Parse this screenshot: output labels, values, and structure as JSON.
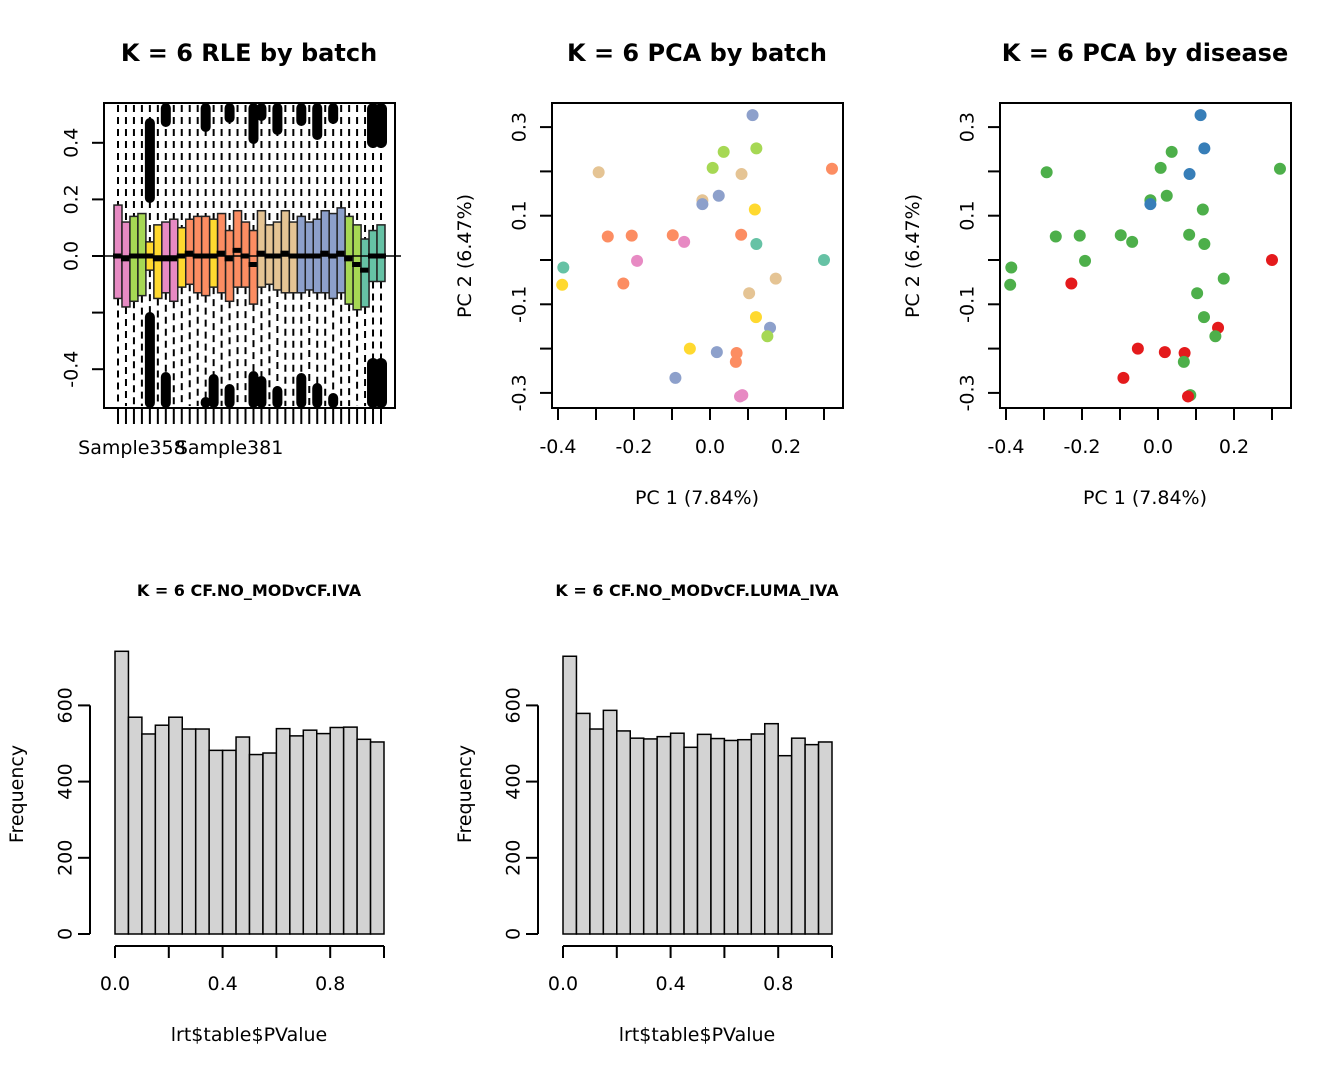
{
  "figure": {
    "panels_layout": "2 rows x 3 columns, bottom-right empty"
  },
  "chart_data": [
    {
      "id": "rle",
      "type": "boxplot",
      "title": "K = 6 RLE by batch",
      "xlabel": "",
      "ylabel": "",
      "ylim": [
        -0.54,
        0.54
      ],
      "yticks": [
        0.4,
        0.2,
        0.0,
        -0.2,
        -0.4
      ],
      "ytick_labels": [
        "0.4",
        "0.2",
        "0.0",
        "",
        "-0.4"
      ],
      "xtick_labels": [
        {
          "index": 2,
          "label": "Sample358"
        },
        {
          "index": 14,
          "label": "Sample381"
        }
      ],
      "reference_line": 0.0,
      "batch_colors": {
        "pink": "#E78AC3",
        "green": "#A6D854",
        "yellow": "#FFD92F",
        "orange": "#FC8D62",
        "tan": "#E5C494",
        "blue": "#8DA0CB",
        "teal": "#66C2A5"
      },
      "boxes": [
        {
          "batch": "pink",
          "q3": 0.18,
          "median": 0.0,
          "q1": -0.15
        },
        {
          "batch": "pink",
          "q3": 0.12,
          "median": -0.01,
          "q1": -0.18
        },
        {
          "batch": "green",
          "q3": 0.14,
          "median": 0.0,
          "q1": -0.16
        },
        {
          "batch": "green",
          "q3": 0.15,
          "median": 0.0,
          "q1": -0.14
        },
        {
          "batch": "yellow",
          "q3": 0.05,
          "median": 0.0,
          "q1": -0.05
        },
        {
          "batch": "yellow",
          "q3": 0.11,
          "median": -0.01,
          "q1": -0.15
        },
        {
          "batch": "pink",
          "q3": 0.12,
          "median": -0.01,
          "q1": -0.13
        },
        {
          "batch": "pink",
          "q3": 0.13,
          "median": -0.01,
          "q1": -0.16
        },
        {
          "batch": "yellow",
          "q3": 0.1,
          "median": 0.0,
          "q1": -0.11
        },
        {
          "batch": "orange",
          "q3": 0.13,
          "median": 0.01,
          "q1": -0.1
        },
        {
          "batch": "orange",
          "q3": 0.14,
          "median": 0.0,
          "q1": -0.13
        },
        {
          "batch": "orange",
          "q3": 0.14,
          "median": 0.0,
          "q1": -0.14
        },
        {
          "batch": "yellow",
          "q3": 0.13,
          "median": 0.0,
          "q1": -0.11
        },
        {
          "batch": "orange",
          "q3": 0.15,
          "median": 0.01,
          "q1": -0.13
        },
        {
          "batch": "orange",
          "q3": 0.09,
          "median": -0.01,
          "q1": -0.16
        },
        {
          "batch": "orange",
          "q3": 0.16,
          "median": 0.02,
          "q1": -0.11
        },
        {
          "batch": "orange",
          "q3": 0.12,
          "median": 0.0,
          "q1": -0.11
        },
        {
          "batch": "orange",
          "q3": 0.09,
          "median": -0.03,
          "q1": -0.17
        },
        {
          "batch": "tan",
          "q3": 0.16,
          "median": 0.01,
          "q1": -0.11
        },
        {
          "batch": "tan",
          "q3": 0.11,
          "median": 0.0,
          "q1": -0.1
        },
        {
          "batch": "tan",
          "q3": 0.12,
          "median": 0.0,
          "q1": -0.12
        },
        {
          "batch": "tan",
          "q3": 0.16,
          "median": 0.01,
          "q1": -0.13
        },
        {
          "batch": "tan",
          "q3": 0.12,
          "median": 0.0,
          "q1": -0.13
        },
        {
          "batch": "blue",
          "q3": 0.14,
          "median": 0.0,
          "q1": -0.13
        },
        {
          "batch": "blue",
          "q3": 0.12,
          "median": 0.0,
          "q1": -0.12
        },
        {
          "batch": "blue",
          "q3": 0.13,
          "median": 0.0,
          "q1": -0.13
        },
        {
          "batch": "blue",
          "q3": 0.16,
          "median": 0.01,
          "q1": -0.13
        },
        {
          "batch": "blue",
          "q3": 0.15,
          "median": 0.0,
          "q1": -0.15
        },
        {
          "batch": "blue",
          "q3": 0.17,
          "median": 0.01,
          "q1": -0.13
        },
        {
          "batch": "green",
          "q3": 0.14,
          "median": -0.01,
          "q1": -0.17
        },
        {
          "batch": "green",
          "q3": 0.11,
          "median": -0.03,
          "q1": -0.19
        },
        {
          "batch": "teal",
          "q3": 0.06,
          "median": -0.05,
          "q1": -0.18
        },
        {
          "batch": "teal",
          "q3": 0.09,
          "median": 0.0,
          "q1": -0.09
        },
        {
          "batch": "teal",
          "q3": 0.11,
          "median": 0.0,
          "q1": -0.09
        }
      ],
      "outlier_columns_top": [
        6,
        11,
        14,
        17,
        18,
        20,
        23,
        25,
        27,
        32,
        33
      ],
      "outlier_columns_bottom": [
        6,
        11,
        12,
        14,
        17,
        18,
        20,
        23,
        25,
        27,
        32,
        33
      ]
    },
    {
      "id": "pca-batch",
      "type": "scatter",
      "title": "K = 6 PCA by batch",
      "xlabel": "PC 1 (7.84%)",
      "ylabel": "PC 2 (6.47%)",
      "xlim": [
        -0.42,
        0.34
      ],
      "ylim": [
        -0.32,
        0.35
      ],
      "xticks": [
        -0.4,
        -0.3,
        -0.2,
        -0.1,
        0.0,
        0.1,
        0.2,
        0.3
      ],
      "xtick_labels": [
        "-0.4",
        "",
        "-0.2",
        "",
        "0.0",
        "",
        "0.2",
        ""
      ],
      "yticks": [
        0.3,
        0.2,
        0.1,
        0.0,
        -0.1,
        -0.2,
        -0.3
      ],
      "ytick_labels": [
        "0.3",
        "",
        "0.1",
        "",
        "-0.1",
        "",
        "-0.3"
      ],
      "points": [
        {
          "x": 0.112,
          "y": 0.327,
          "batch": "blue",
          "disease": "blue"
        },
        {
          "x": 0.122,
          "y": 0.252,
          "batch": "green",
          "disease": "blue"
        },
        {
          "x": 0.036,
          "y": 0.244,
          "batch": "green",
          "disease": "green"
        },
        {
          "x": 0.007,
          "y": 0.208,
          "batch": "green",
          "disease": "green"
        },
        {
          "x": 0.083,
          "y": 0.194,
          "batch": "tan",
          "disease": "blue"
        },
        {
          "x": 0.321,
          "y": 0.206,
          "batch": "orange",
          "disease": "green"
        },
        {
          "x": -0.293,
          "y": 0.198,
          "batch": "tan",
          "disease": "green"
        },
        {
          "x": 0.023,
          "y": 0.145,
          "batch": "blue",
          "disease": "green"
        },
        {
          "x": -0.02,
          "y": 0.135,
          "batch": "tan",
          "disease": "green"
        },
        {
          "x": -0.02,
          "y": 0.126,
          "batch": "blue",
          "disease": "blue"
        },
        {
          "x": 0.118,
          "y": 0.114,
          "batch": "yellow",
          "disease": "green"
        },
        {
          "x": -0.269,
          "y": 0.053,
          "batch": "orange",
          "disease": "green"
        },
        {
          "x": -0.206,
          "y": 0.055,
          "batch": "orange",
          "disease": "green"
        },
        {
          "x": -0.098,
          "y": 0.056,
          "batch": "orange",
          "disease": "green"
        },
        {
          "x": -0.068,
          "y": 0.041,
          "batch": "pink",
          "disease": "green"
        },
        {
          "x": 0.082,
          "y": 0.057,
          "batch": "orange",
          "disease": "green"
        },
        {
          "x": 0.122,
          "y": 0.036,
          "batch": "teal",
          "disease": "green"
        },
        {
          "x": -0.192,
          "y": -0.002,
          "batch": "pink",
          "disease": "green"
        },
        {
          "x": 0.3,
          "y": 0.0,
          "batch": "teal",
          "disease": "red"
        },
        {
          "x": -0.386,
          "y": -0.017,
          "batch": "teal",
          "disease": "green"
        },
        {
          "x": -0.389,
          "y": -0.056,
          "batch": "yellow",
          "disease": "green"
        },
        {
          "x": -0.228,
          "y": -0.053,
          "batch": "orange",
          "disease": "red"
        },
        {
          "x": 0.173,
          "y": -0.042,
          "batch": "tan",
          "disease": "green"
        },
        {
          "x": 0.103,
          "y": -0.075,
          "batch": "tan",
          "disease": "green"
        },
        {
          "x": 0.121,
          "y": -0.129,
          "batch": "yellow",
          "disease": "green"
        },
        {
          "x": 0.158,
          "y": -0.153,
          "batch": "blue",
          "disease": "red"
        },
        {
          "x": 0.151,
          "y": -0.172,
          "batch": "green",
          "disease": "green"
        },
        {
          "x": -0.053,
          "y": -0.2,
          "batch": "yellow",
          "disease": "red"
        },
        {
          "x": 0.018,
          "y": -0.208,
          "batch": "blue",
          "disease": "red"
        },
        {
          "x": 0.07,
          "y": -0.21,
          "batch": "orange",
          "disease": "red"
        },
        {
          "x": 0.068,
          "y": -0.23,
          "batch": "orange",
          "disease": "green"
        },
        {
          "x": -0.091,
          "y": -0.266,
          "batch": "blue",
          "disease": "red"
        },
        {
          "x": 0.085,
          "y": -0.305,
          "batch": "pink",
          "disease": "green"
        },
        {
          "x": 0.079,
          "y": -0.308,
          "batch": "pink",
          "disease": "red"
        }
      ]
    },
    {
      "id": "pca-disease",
      "type": "scatter",
      "title": "K = 6 PCA by disease",
      "xlabel": "PC 1 (7.84%)",
      "ylabel": "PC 2 (6.47%)",
      "xlim": [
        -0.42,
        0.34
      ],
      "ylim": [
        -0.32,
        0.35
      ],
      "xticks": [
        -0.4,
        -0.3,
        -0.2,
        -0.1,
        0.0,
        0.1,
        0.2,
        0.3
      ],
      "xtick_labels": [
        "-0.4",
        "",
        "-0.2",
        "",
        "0.0",
        "",
        "0.2",
        ""
      ],
      "yticks": [
        0.3,
        0.2,
        0.1,
        0.0,
        -0.1,
        -0.2,
        -0.3
      ],
      "ytick_labels": [
        "0.3",
        "",
        "0.1",
        "",
        "-0.1",
        "",
        "-0.3"
      ],
      "disease_colors": {
        "green": "#4DAF4A",
        "blue": "#377EB8",
        "red": "#E41A1C"
      },
      "points_ref": "pca-batch.points (disease field)"
    },
    {
      "id": "hist-iva",
      "type": "bar",
      "title": "K = 6 CF.NO_MODvCF.IVA",
      "xlabel": "lrt$table$PValue",
      "ylabel": "Frequency",
      "bin_width": 0.05,
      "xlim": [
        0,
        1
      ],
      "ylim": [
        0,
        750
      ],
      "xticks": [
        0,
        0.2,
        0.4,
        0.6,
        0.8,
        1.0
      ],
      "xtick_labels": [
        "0.0",
        "",
        "0.4",
        "",
        "0.8",
        ""
      ],
      "yticks": [
        0,
        200,
        400,
        600
      ],
      "ytick_labels": [
        "0",
        "200",
        "400",
        "600"
      ],
      "values": [
        742,
        569,
        525,
        548,
        569,
        538,
        538,
        482,
        482,
        517,
        471,
        475,
        539,
        520,
        535,
        526,
        542,
        543,
        511,
        504
      ]
    },
    {
      "id": "hist-luma-iva",
      "type": "bar",
      "title": "K = 6 CF.NO_MODvCF.LUMA_IVA",
      "xlabel": "lrt$table$PValue",
      "ylabel": "Frequency",
      "bin_width": 0.05,
      "xlim": [
        0,
        1
      ],
      "ylim": [
        0,
        750
      ],
      "xticks": [
        0,
        0.2,
        0.4,
        0.6,
        0.8,
        1.0
      ],
      "xtick_labels": [
        "0.0",
        "",
        "0.4",
        "",
        "0.8",
        ""
      ],
      "yticks": [
        0,
        200,
        400,
        600
      ],
      "ytick_labels": [
        "0",
        "200",
        "400",
        "600"
      ],
      "values": [
        729,
        579,
        538,
        587,
        533,
        514,
        512,
        518,
        527,
        490,
        524,
        513,
        508,
        510,
        525,
        552,
        468,
        514,
        497,
        504
      ]
    }
  ],
  "colors": {
    "bar_fill": "#D3D3D3",
    "axis": "#000000"
  }
}
